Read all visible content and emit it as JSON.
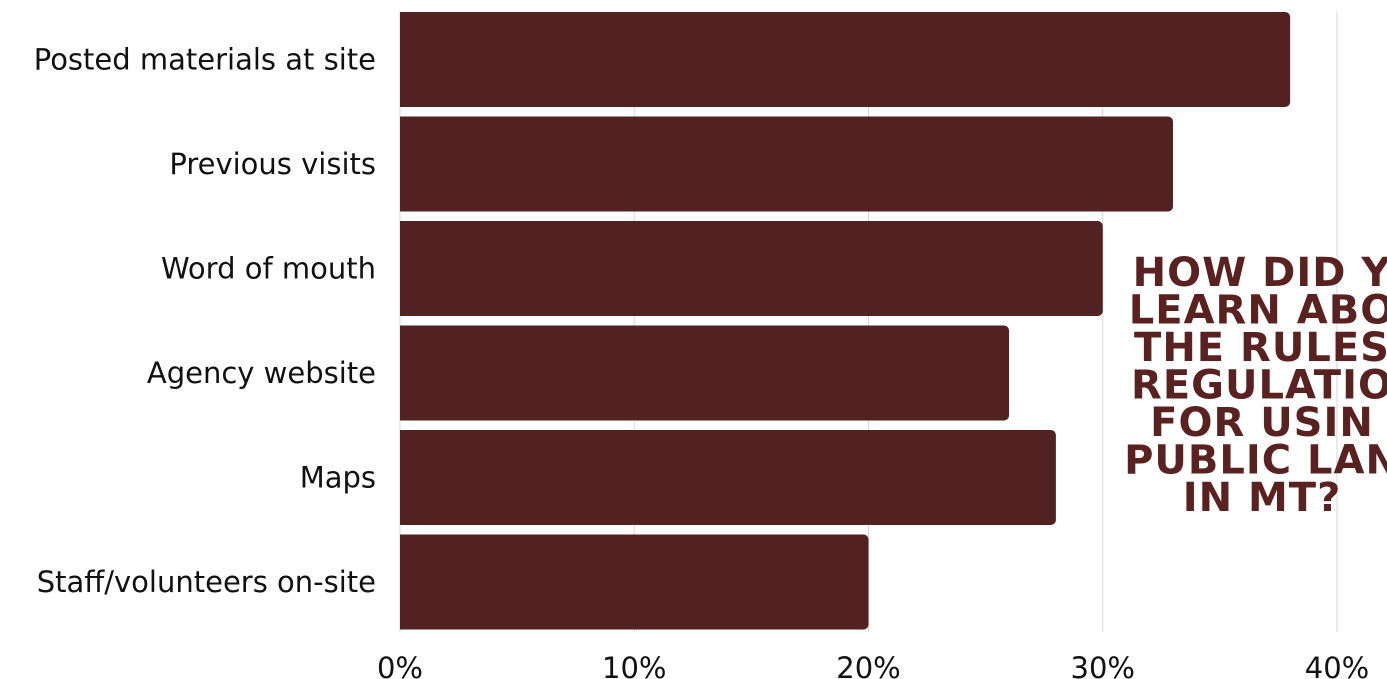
{
  "chart_data": {
    "type": "bar",
    "orientation": "horizontal",
    "title_lines": [
      "HOW DID Y",
      "LEARN ABO",
      "THE RULES",
      "REGULATIO",
      "FOR USIN",
      "PUBLIC LAN",
      "IN MT?"
    ],
    "categories": [
      "Posted materials at site",
      "Previous visits",
      "Word of mouth",
      "Agency website",
      "Maps",
      "Staff/volunteers on-site"
    ],
    "values": [
      38,
      33,
      30,
      26,
      28,
      20
    ],
    "xlim": [
      0,
      40
    ],
    "x_ticks": [
      0,
      10,
      20,
      30,
      40
    ],
    "x_tick_labels": [
      "0%",
      "10%",
      "20%",
      "30%",
      "40%"
    ],
    "grid": "vertical",
    "bar_color": "#522222",
    "title_color": "#5a2121"
  }
}
